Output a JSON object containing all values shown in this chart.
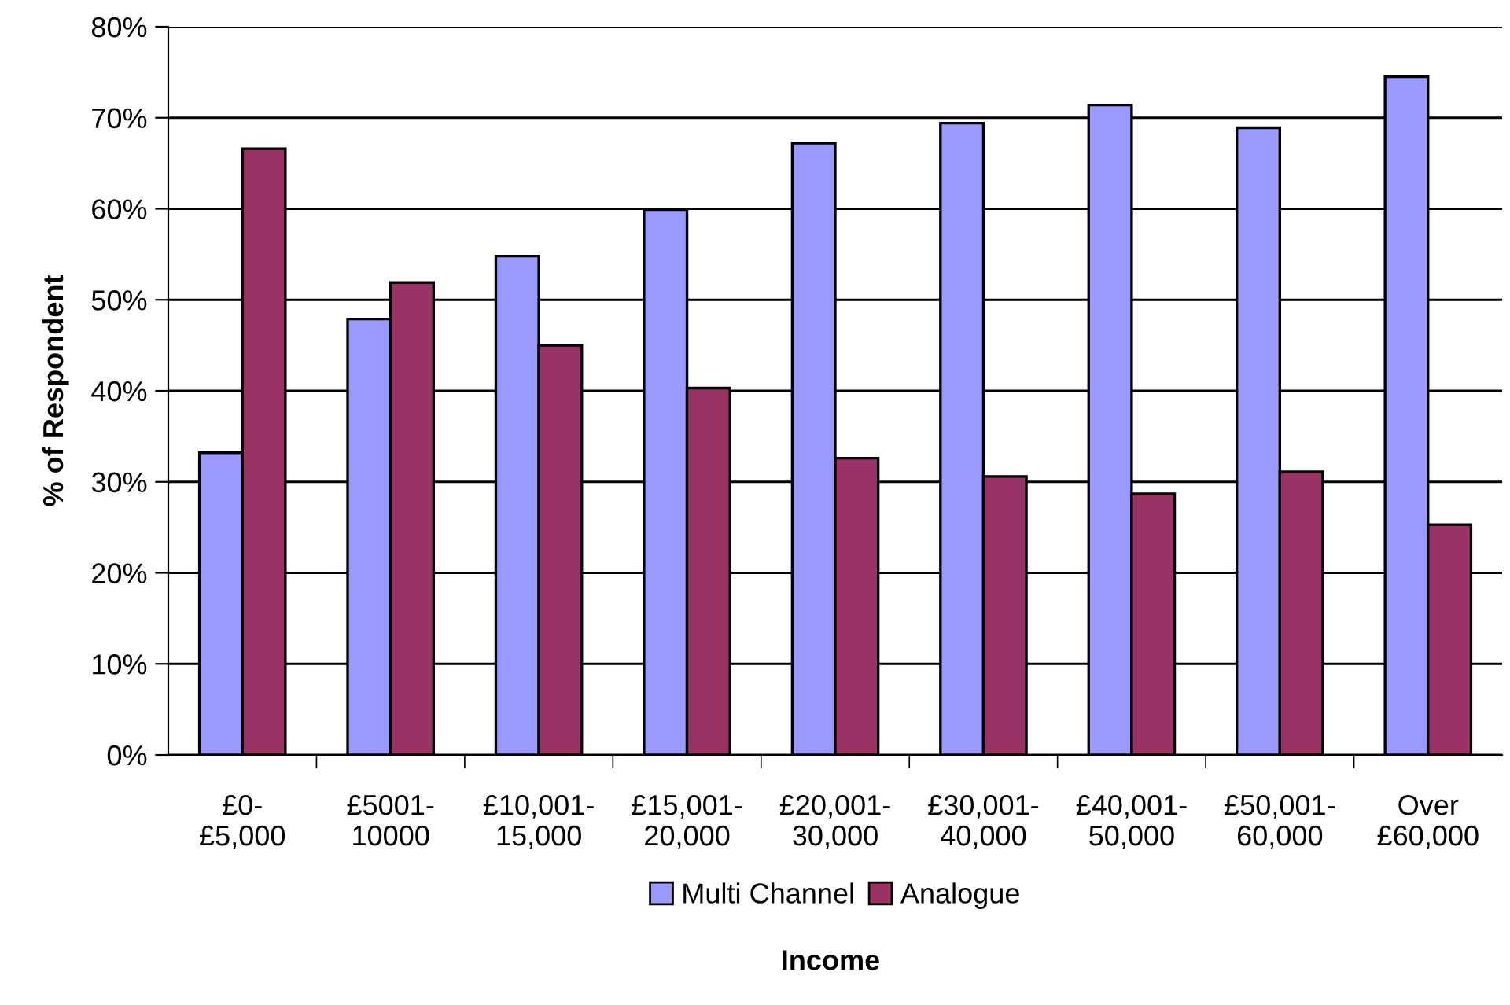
{
  "chart_data": {
    "type": "bar",
    "xlabel": "Income",
    "ylabel": "% of Respondent",
    "categories": [
      "£0-\n£5,000",
      "£5001-\n10000",
      "£10,001-\n15,000",
      "£15,001-\n20,000",
      "£20,001-\n30,000",
      "£30,001-\n40,000",
      "£40,001-\n50,000",
      "£50,001-\n60,000",
      "Over\n£60,000"
    ],
    "series": [
      {
        "name": "Multi Channel",
        "color": "#9999ff",
        "values": [
          33.2,
          47.9,
          54.8,
          59.9,
          67.2,
          69.4,
          71.4,
          68.9,
          74.5
        ]
      },
      {
        "name": "Analogue",
        "color": "#993366",
        "values": [
          66.6,
          51.9,
          45.0,
          40.3,
          32.6,
          30.6,
          28.7,
          31.1,
          25.3
        ]
      }
    ],
    "ylim": [
      0,
      80
    ],
    "yticks": [
      {
        "value": 0,
        "label": "0%"
      },
      {
        "value": 10,
        "label": "10%"
      },
      {
        "value": 20,
        "label": "20%"
      },
      {
        "value": 30,
        "label": "30%"
      },
      {
        "value": 40,
        "label": "40%"
      },
      {
        "value": 50,
        "label": "50%"
      },
      {
        "value": 60,
        "label": "60%"
      },
      {
        "value": 70,
        "label": "70%"
      },
      {
        "value": 80,
        "label": "80%"
      }
    ],
    "grid": "y",
    "legend": "bottom"
  }
}
